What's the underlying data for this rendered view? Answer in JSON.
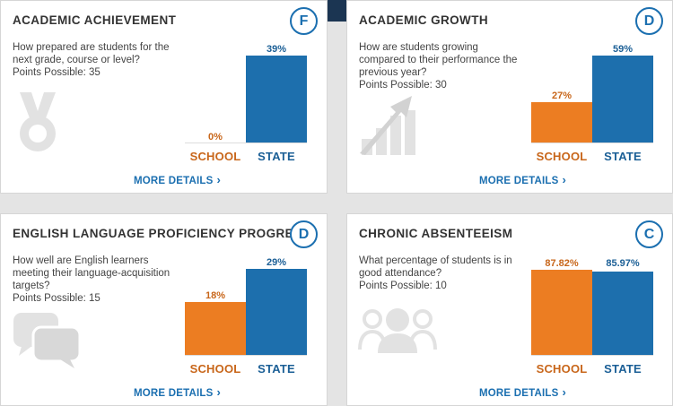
{
  "labels": {
    "school": "SCHOOL",
    "state": "STATE",
    "more_details": "MORE DETAILS",
    "chevron": "›"
  },
  "colors": {
    "school": "#ec7d22",
    "state": "#1d6fad",
    "grade_ring": "#1b6fb0",
    "icon_gray": "#e2e2e2"
  },
  "cards": [
    {
      "title": "ACADEMIC ACHIEVEMENT",
      "grade": "F",
      "question": "How prepared are students for the next grade, course or level?",
      "points": "Points Possible: 35",
      "icon": "medal-icon",
      "school_value": "0%",
      "state_value": "39%"
    },
    {
      "title": "ACADEMIC GROWTH",
      "grade": "D",
      "question": "How are students growing compared to their performance the previous year?",
      "points": "Points Possible: 30",
      "icon": "growth-arrow-icon",
      "school_value": "27%",
      "state_value": "59%"
    },
    {
      "title": "ENGLISH LANGUAGE PROFICIENCY PROGRESS",
      "grade": "D",
      "question": "How well are English learners meeting their language-acquisition targets?",
      "points": "Points Possible: 15",
      "icon": "chat-bubbles-icon",
      "school_value": "18%",
      "state_value": "29%"
    },
    {
      "title": "CHRONIC ABSENTEEISM",
      "grade": "C",
      "question": "What percentage of students is in good attendance?",
      "points": "Points Possible: 10",
      "icon": "people-group-icon",
      "school_value": "87.82%",
      "state_value": "85.97%"
    }
  ]
}
